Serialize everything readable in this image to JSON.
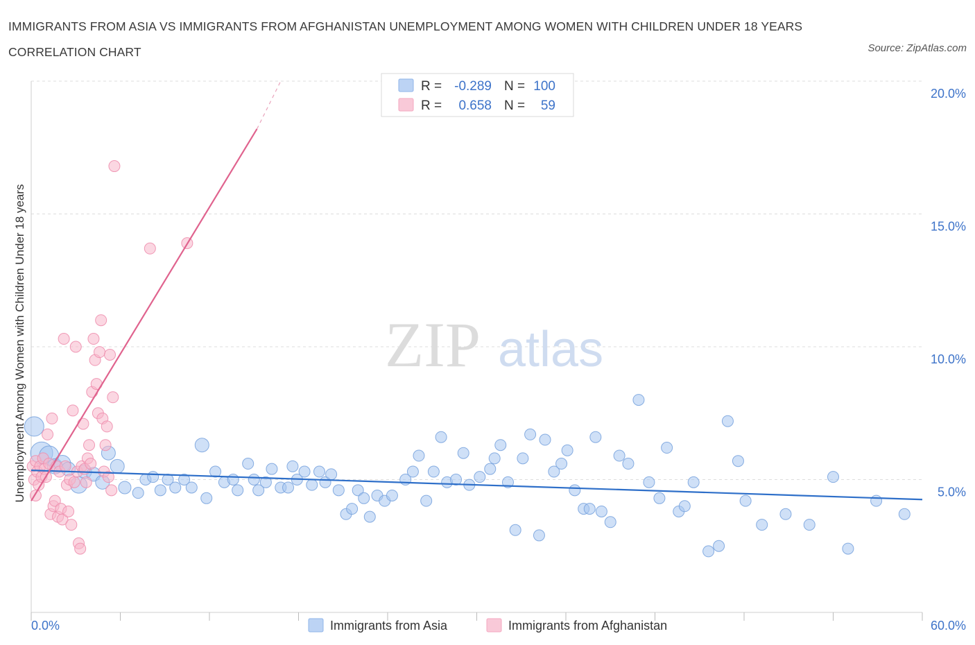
{
  "title": "IMMIGRANTS FROM ASIA VS IMMIGRANTS FROM AFGHANISTAN UNEMPLOYMENT AMONG WOMEN WITH CHILDREN UNDER 18 YEARS CORRELATION CHART",
  "source": "Source: ZipAtlas.com",
  "watermark": {
    "part1": "ZIP",
    "part2": "atlas"
  },
  "legend_top": [
    {
      "r_label": "R =",
      "r_value": "-0.289",
      "n_label": "N =",
      "n_value": "100",
      "color": "#8fb4e8"
    },
    {
      "r_label": "R =",
      "r_value": "0.658",
      "n_label": "N =",
      "n_value": "59",
      "color": "#f4a8c0"
    }
  ],
  "colors": {
    "asia_fill": "#a8c6f0",
    "asia_stroke": "#7aa4de",
    "asia_line": "#2e6fc9",
    "afg_fill": "#f7b6ca",
    "afg_stroke": "#ee8fae",
    "afg_line": "#e0638e",
    "value_text": "#3d73c9",
    "grid": "#dddddd"
  },
  "chart_data": {
    "type": "scatter",
    "title": "IMMIGRANTS FROM ASIA VS IMMIGRANTS FROM AFGHANISTAN UNEMPLOYMENT AMONG WOMEN WITH CHILDREN UNDER 18 YEARS CORRELATION CHART",
    "xlabel": "",
    "ylabel": "Unemployment Among Women with Children Under 18 years",
    "xlim": [
      0,
      60
    ],
    "ylim": [
      0,
      20
    ],
    "x_tick_labels": [
      "0.0%",
      "60.0%"
    ],
    "y_ticks": [
      5,
      10,
      15,
      20
    ],
    "y_tick_labels": [
      "5.0%",
      "10.0%",
      "15.0%",
      "20.0%"
    ],
    "grid": true,
    "legend_position": "bottom",
    "series": [
      {
        "name": "Immigrants from Asia",
        "R": -0.289,
        "N": 100,
        "trend": {
          "x": [
            0,
            60
          ],
          "y": [
            5.35,
            4.25
          ]
        },
        "points": [
          [
            0.2,
            7.0,
            14
          ],
          [
            0.7,
            6.0,
            16
          ],
          [
            1.2,
            5.9,
            14
          ],
          [
            1.6,
            5.5,
            11
          ],
          [
            2.1,
            5.6,
            12
          ],
          [
            2.5,
            5.4,
            10
          ],
          [
            3.2,
            4.8,
            12
          ],
          [
            3.6,
            5.3,
            10
          ],
          [
            4.2,
            5.2,
            10
          ],
          [
            4.8,
            4.9,
            10
          ],
          [
            5.2,
            6.0,
            10
          ],
          [
            5.8,
            5.5,
            10
          ],
          [
            6.3,
            4.7,
            9
          ],
          [
            7.2,
            4.5,
            8
          ],
          [
            7.7,
            5.0,
            8
          ],
          [
            8.2,
            5.1,
            8
          ],
          [
            8.7,
            4.6,
            8
          ],
          [
            9.2,
            5.0,
            8
          ],
          [
            9.7,
            4.7,
            8
          ],
          [
            10.3,
            5.0,
            8
          ],
          [
            10.8,
            4.7,
            8
          ],
          [
            11.5,
            6.3,
            10
          ],
          [
            11.8,
            4.3,
            8
          ],
          [
            12.4,
            5.3,
            8
          ],
          [
            13.0,
            4.9,
            8
          ],
          [
            13.6,
            5.0,
            8
          ],
          [
            13.9,
            4.6,
            8
          ],
          [
            14.6,
            5.6,
            8
          ],
          [
            15.0,
            5.0,
            8
          ],
          [
            15.3,
            4.6,
            8
          ],
          [
            15.8,
            4.9,
            8
          ],
          [
            16.2,
            5.4,
            8
          ],
          [
            16.8,
            4.7,
            8
          ],
          [
            17.3,
            4.7,
            8
          ],
          [
            17.6,
            5.5,
            8
          ],
          [
            17.9,
            5.0,
            8
          ],
          [
            18.4,
            5.3,
            8
          ],
          [
            18.9,
            4.8,
            8
          ],
          [
            19.4,
            5.3,
            8
          ],
          [
            19.8,
            4.9,
            8
          ],
          [
            20.2,
            5.2,
            8
          ],
          [
            20.7,
            4.6,
            8
          ],
          [
            21.2,
            3.7,
            8
          ],
          [
            21.6,
            3.9,
            8
          ],
          [
            22.0,
            4.6,
            8
          ],
          [
            22.4,
            4.3,
            8
          ],
          [
            22.8,
            3.6,
            8
          ],
          [
            23.3,
            4.4,
            8
          ],
          [
            23.8,
            4.2,
            8
          ],
          [
            24.3,
            4.4,
            8
          ],
          [
            25.2,
            5.0,
            8
          ],
          [
            25.7,
            5.3,
            8
          ],
          [
            26.1,
            5.9,
            8
          ],
          [
            26.6,
            4.2,
            8
          ],
          [
            27.1,
            5.3,
            8
          ],
          [
            27.6,
            6.6,
            8
          ],
          [
            28.0,
            4.9,
            8
          ],
          [
            28.6,
            5.0,
            8
          ],
          [
            29.1,
            6.0,
            8
          ],
          [
            29.5,
            4.8,
            8
          ],
          [
            30.2,
            5.1,
            8
          ],
          [
            30.9,
            5.4,
            8
          ],
          [
            31.2,
            5.8,
            8
          ],
          [
            31.6,
            6.3,
            8
          ],
          [
            32.1,
            4.9,
            8
          ],
          [
            32.6,
            3.1,
            8
          ],
          [
            33.1,
            5.8,
            8
          ],
          [
            33.6,
            6.7,
            8
          ],
          [
            34.2,
            2.9,
            8
          ],
          [
            34.6,
            6.5,
            8
          ],
          [
            35.2,
            5.3,
            8
          ],
          [
            35.7,
            5.6,
            8
          ],
          [
            36.1,
            6.1,
            8
          ],
          [
            36.6,
            4.6,
            8
          ],
          [
            37.2,
            3.9,
            8
          ],
          [
            37.6,
            3.9,
            8
          ],
          [
            38.0,
            6.6,
            8
          ],
          [
            38.4,
            3.8,
            8
          ],
          [
            39.0,
            3.4,
            8
          ],
          [
            39.6,
            5.9,
            8
          ],
          [
            40.2,
            5.6,
            8
          ],
          [
            40.9,
            8.0,
            8
          ],
          [
            41.6,
            4.9,
            8
          ],
          [
            42.3,
            4.3,
            8
          ],
          [
            42.8,
            6.2,
            8
          ],
          [
            43.6,
            3.8,
            8
          ],
          [
            44.0,
            4.0,
            8
          ],
          [
            44.6,
            4.9,
            8
          ],
          [
            45.6,
            2.3,
            8
          ],
          [
            46.3,
            2.5,
            8
          ],
          [
            46.9,
            7.2,
            8
          ],
          [
            47.6,
            5.7,
            8
          ],
          [
            48.1,
            4.2,
            8
          ],
          [
            49.2,
            3.3,
            8
          ],
          [
            50.8,
            3.7,
            8
          ],
          [
            52.4,
            3.3,
            8
          ],
          [
            54.0,
            5.1,
            8
          ],
          [
            55.0,
            2.4,
            8
          ],
          [
            56.9,
            4.2,
            8
          ],
          [
            58.8,
            3.7,
            8
          ]
        ]
      },
      {
        "name": "Immigrants from Afghanistan",
        "R": 0.658,
        "N": 59,
        "trend": {
          "x": [
            0,
            15.2
          ],
          "y": [
            4.2,
            18.2
          ]
        },
        "trend_dashed": {
          "x": [
            15.2,
            16.8
          ],
          "y": [
            18.2,
            20.0
          ]
        },
        "points": [
          [
            0.1,
            5.5,
            8
          ],
          [
            0.2,
            5.0,
            8
          ],
          [
            0.3,
            4.4,
            8
          ],
          [
            0.3,
            5.7,
            8
          ],
          [
            0.4,
            5.3,
            8
          ],
          [
            0.5,
            4.8,
            8
          ],
          [
            0.6,
            5.5,
            8
          ],
          [
            0.7,
            5.1,
            8
          ],
          [
            0.8,
            5.8,
            8
          ],
          [
            0.9,
            5.4,
            8
          ],
          [
            1.0,
            5.1,
            8
          ],
          [
            1.1,
            6.7,
            8
          ],
          [
            1.2,
            5.6,
            8
          ],
          [
            1.3,
            3.7,
            8
          ],
          [
            1.4,
            7.3,
            8
          ],
          [
            1.5,
            4.0,
            8
          ],
          [
            1.6,
            4.2,
            8
          ],
          [
            1.7,
            5.5,
            8
          ],
          [
            1.8,
            3.6,
            8
          ],
          [
            1.9,
            5.3,
            8
          ],
          [
            2.0,
            3.9,
            8
          ],
          [
            2.1,
            3.5,
            8
          ],
          [
            2.2,
            10.3,
            8
          ],
          [
            2.3,
            5.5,
            8
          ],
          [
            2.4,
            4.8,
            8
          ],
          [
            2.5,
            3.8,
            8
          ],
          [
            2.6,
            5.0,
            8
          ],
          [
            2.7,
            3.3,
            8
          ],
          [
            2.8,
            7.6,
            8
          ],
          [
            2.9,
            4.9,
            8
          ],
          [
            3.0,
            10.0,
            8
          ],
          [
            3.1,
            5.3,
            8
          ],
          [
            3.2,
            2.6,
            8
          ],
          [
            3.3,
            2.4,
            8
          ],
          [
            3.4,
            5.5,
            8
          ],
          [
            3.5,
            7.1,
            8
          ],
          [
            3.6,
            5.4,
            8
          ],
          [
            3.7,
            4.9,
            8
          ],
          [
            3.8,
            5.8,
            8
          ],
          [
            3.9,
            6.3,
            8
          ],
          [
            4.0,
            5.6,
            8
          ],
          [
            4.1,
            8.3,
            8
          ],
          [
            4.2,
            10.3,
            8
          ],
          [
            4.3,
            9.5,
            8
          ],
          [
            4.4,
            8.6,
            8
          ],
          [
            4.5,
            7.5,
            8
          ],
          [
            4.6,
            9.8,
            8
          ],
          [
            4.7,
            11.0,
            8
          ],
          [
            4.8,
            7.3,
            8
          ],
          [
            4.9,
            5.3,
            8
          ],
          [
            5.0,
            6.3,
            8
          ],
          [
            5.1,
            7.0,
            8
          ],
          [
            5.2,
            5.1,
            8
          ],
          [
            5.3,
            9.7,
            8
          ],
          [
            5.4,
            4.6,
            8
          ],
          [
            5.5,
            8.1,
            8
          ],
          [
            5.6,
            16.8,
            8
          ],
          [
            8.0,
            13.7,
            8
          ],
          [
            10.5,
            13.9,
            8
          ]
        ]
      }
    ]
  }
}
